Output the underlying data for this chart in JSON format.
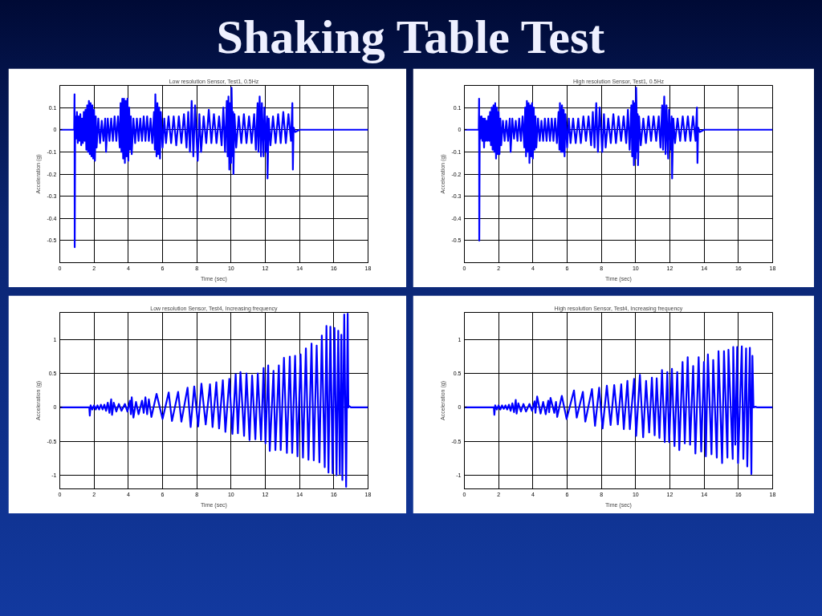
{
  "chart_data": [
    {
      "type": "other",
      "title": "Shaking Table Test"
    },
    {
      "type": "line",
      "title": "Low resolution Sensor, Test1, 0.5Hz",
      "xlabel": "Time (sec)",
      "ylabel": "Acceleration (g)",
      "xlim": [
        0,
        18
      ],
      "ylim": [
        -0.6,
        0.2
      ],
      "xticks": [
        0,
        2,
        4,
        6,
        8,
        10,
        12,
        14,
        16,
        18
      ],
      "yticks": [
        -0.5,
        -0.4,
        -0.3,
        -0.2,
        -0.1,
        0,
        0.1
      ],
      "grid": true,
      "series": [
        {
          "color": "#0000ff",
          "x": [
            0,
            0.84,
            0.86,
            0.87,
            0.9,
            0.95,
            1.0,
            1.05,
            1.1,
            1.15,
            1.2,
            1.25,
            1.3,
            1.35,
            1.4,
            1.45,
            1.5,
            1.55,
            1.6,
            1.65,
            1.7,
            1.75,
            1.8,
            1.85,
            1.9,
            1.95,
            2.0,
            2.05,
            2.1,
            2.15,
            2.25,
            2.35,
            2.45,
            2.55,
            2.65,
            2.7,
            2.8,
            2.9,
            3.0,
            3.1,
            3.2,
            3.3,
            3.4,
            3.5,
            3.55,
            3.6,
            3.65,
            3.7,
            3.75,
            3.8,
            3.85,
            3.9,
            3.95,
            4.0,
            4.05,
            4.1,
            4.15,
            4.2,
            4.3,
            4.4,
            4.5,
            4.6,
            4.7,
            4.8,
            4.9,
            5.0,
            5.1,
            5.2,
            5.3,
            5.4,
            5.5,
            5.55,
            5.58,
            5.65,
            5.7,
            5.75,
            5.8,
            5.85,
            5.9,
            6.0,
            6.1,
            6.2,
            6.35,
            6.5,
            6.65,
            6.8,
            6.95,
            7.1,
            7.25,
            7.4,
            7.5,
            7.6,
            7.7,
            7.8,
            7.9,
            8.05,
            8.15,
            8.25,
            8.4,
            8.55,
            8.7,
            8.85,
            9.0,
            9.15,
            9.3,
            9.45,
            9.55,
            9.65,
            9.75,
            9.8,
            9.85,
            9.9,
            9.95,
            10.0,
            10.03,
            10.1,
            10.12,
            10.14,
            10.2,
            10.3,
            10.45,
            10.6,
            10.75,
            10.9,
            11.05,
            11.2,
            11.35,
            11.45,
            11.55,
            11.6,
            11.67,
            11.75,
            11.8,
            11.9,
            11.95,
            12.05,
            12.1,
            12.13,
            12.2,
            12.3,
            12.45,
            12.6,
            12.75,
            12.9,
            13.05,
            13.2,
            13.35,
            13.5,
            13.58,
            13.61,
            13.65,
            13.75,
            14,
            18
          ],
          "values": [
            0,
            0,
            0.16,
            -0.53,
            0.06,
            -0.04,
            0.08,
            -0.06,
            0.06,
            -0.05,
            0.07,
            -0.07,
            0.05,
            -0.06,
            0.08,
            -0.05,
            0.09,
            -0.09,
            0.11,
            -0.1,
            0.13,
            -0.11,
            0.12,
            -0.12,
            0.11,
            -0.13,
            0.09,
            -0.14,
            0.06,
            -0.08,
            0.05,
            -0.06,
            0.04,
            -0.05,
            0.05,
            -0.1,
            0.05,
            -0.05,
            0.05,
            -0.05,
            0.06,
            -0.05,
            0.06,
            -0.08,
            0.12,
            -0.1,
            0.14,
            -0.13,
            0.14,
            -0.15,
            0.13,
            -0.12,
            0.14,
            -0.14,
            0.1,
            -0.09,
            0.06,
            -0.11,
            0.05,
            -0.06,
            0.05,
            -0.05,
            0.05,
            -0.05,
            0.06,
            -0.05,
            0.06,
            -0.05,
            0.05,
            -0.06,
            0.08,
            -0.09,
            0.16,
            -0.12,
            0.12,
            -0.11,
            0.1,
            -0.13,
            0.08,
            -0.08,
            0.05,
            -0.06,
            0.06,
            -0.06,
            0.06,
            -0.07,
            0.06,
            -0.06,
            0.07,
            -0.08,
            0.08,
            -0.1,
            0.13,
            -0.12,
            0.11,
            -0.14,
            0.07,
            -0.1,
            0.06,
            -0.06,
            0.09,
            -0.06,
            0.07,
            -0.06,
            0.06,
            -0.07,
            0.1,
            -0.1,
            0.13,
            -0.12,
            0.15,
            -0.18,
            0.12,
            -0.15,
            0.19,
            -0.12,
            0.08,
            -0.2,
            0.07,
            -0.08,
            0.06,
            -0.06,
            0.07,
            -0.06,
            0.06,
            -0.06,
            0.07,
            -0.09,
            0.12,
            -0.1,
            0.15,
            -0.12,
            0.12,
            -0.12,
            0.1,
            -0.1,
            0.06,
            -0.22,
            0.05,
            -0.07,
            0.06,
            -0.06,
            0.07,
            -0.06,
            0.08,
            -0.06,
            0.07,
            -0.05,
            0.12,
            -0.18,
            0.01,
            -0.01,
            0,
            0
          ]
        }
      ]
    },
    {
      "type": "line",
      "title": "High resolution Sensor, Test1, 0.5Hz",
      "xlabel": "Time (sec)",
      "ylabel": "Acceleration (g)",
      "xlim": [
        0,
        18
      ],
      "ylim": [
        -0.6,
        0.2
      ],
      "xticks": [
        0,
        2,
        4,
        6,
        8,
        10,
        12,
        14,
        16,
        18
      ],
      "yticks": [
        -0.5,
        -0.4,
        -0.3,
        -0.2,
        -0.1,
        0,
        0.1
      ],
      "grid": true,
      "series": [
        {
          "color": "#0000ff",
          "x": [
            0,
            0.84,
            0.86,
            0.87,
            0.9,
            0.95,
            1.0,
            1.05,
            1.1,
            1.15,
            1.2,
            1.25,
            1.3,
            1.35,
            1.4,
            1.45,
            1.5,
            1.55,
            1.6,
            1.65,
            1.7,
            1.75,
            1.8,
            1.85,
            1.9,
            1.95,
            2.0,
            2.05,
            2.1,
            2.15,
            2.25,
            2.35,
            2.45,
            2.55,
            2.65,
            2.7,
            2.8,
            2.9,
            3.0,
            3.1,
            3.2,
            3.3,
            3.4,
            3.5,
            3.55,
            3.6,
            3.65,
            3.7,
            3.75,
            3.8,
            3.85,
            3.9,
            3.95,
            4.0,
            4.05,
            4.1,
            4.15,
            4.2,
            4.3,
            4.4,
            4.5,
            4.6,
            4.7,
            4.8,
            4.9,
            5.0,
            5.1,
            5.2,
            5.3,
            5.4,
            5.5,
            5.55,
            5.58,
            5.65,
            5.7,
            5.75,
            5.8,
            5.85,
            5.9,
            6.0,
            6.1,
            6.2,
            6.35,
            6.5,
            6.65,
            6.8,
            6.95,
            7.1,
            7.25,
            7.4,
            7.5,
            7.6,
            7.7,
            7.8,
            7.9,
            8.05,
            8.15,
            8.25,
            8.4,
            8.55,
            8.7,
            8.85,
            9.0,
            9.15,
            9.3,
            9.45,
            9.55,
            9.65,
            9.75,
            9.8,
            9.85,
            9.9,
            9.95,
            10.0,
            10.03,
            10.1,
            10.12,
            10.14,
            10.2,
            10.3,
            10.45,
            10.6,
            10.75,
            10.9,
            11.05,
            11.2,
            11.35,
            11.45,
            11.55,
            11.6,
            11.67,
            11.75,
            11.8,
            11.9,
            11.95,
            12.05,
            12.1,
            12.13,
            12.2,
            12.3,
            12.45,
            12.6,
            12.75,
            12.9,
            13.05,
            13.2,
            13.35,
            13.5,
            13.58,
            13.61,
            13.65,
            13.75,
            14,
            18
          ],
          "values": [
            0,
            0,
            0.14,
            -0.5,
            0.06,
            -0.04,
            0.06,
            -0.05,
            0.05,
            -0.08,
            0.05,
            -0.05,
            0.04,
            -0.05,
            0.06,
            -0.05,
            0.08,
            -0.07,
            0.1,
            -0.09,
            0.11,
            -0.1,
            0.12,
            -0.13,
            0.1,
            -0.11,
            0.08,
            -0.11,
            0.05,
            -0.07,
            0.04,
            -0.05,
            0.04,
            -0.05,
            0.05,
            -0.1,
            0.05,
            -0.04,
            0.04,
            -0.05,
            0.05,
            -0.05,
            0.06,
            -0.08,
            0.1,
            -0.12,
            0.13,
            -0.1,
            0.12,
            -0.15,
            0.11,
            -0.12,
            0.12,
            -0.13,
            0.1,
            -0.09,
            0.06,
            -0.08,
            0.05,
            -0.05,
            0.04,
            -0.05,
            0.05,
            -0.05,
            0.05,
            -0.05,
            0.05,
            -0.05,
            0.05,
            -0.06,
            0.08,
            -0.09,
            0.12,
            -0.1,
            0.11,
            -0.1,
            0.09,
            -0.12,
            0.07,
            -0.08,
            0.05,
            -0.06,
            0.05,
            -0.06,
            0.05,
            -0.06,
            0.06,
            -0.05,
            0.06,
            -0.07,
            0.08,
            -0.08,
            0.12,
            -0.1,
            0.1,
            -0.1,
            0.07,
            -0.08,
            0.05,
            -0.06,
            0.07,
            -0.06,
            0.06,
            -0.05,
            0.06,
            -0.06,
            0.09,
            -0.09,
            0.11,
            -0.12,
            0.13,
            -0.16,
            0.12,
            -0.13,
            0.19,
            -0.1,
            0.07,
            -0.16,
            0.06,
            -0.07,
            0.05,
            -0.06,
            0.06,
            -0.05,
            0.06,
            -0.05,
            0.06,
            -0.08,
            0.11,
            -0.09,
            0.15,
            -0.11,
            0.11,
            -0.13,
            0.09,
            -0.09,
            0.06,
            -0.22,
            0.05,
            -0.06,
            0.05,
            -0.05,
            0.06,
            -0.05,
            0.06,
            -0.05,
            0.06,
            -0.05,
            0.1,
            -0.15,
            0.01,
            -0.01,
            0,
            0
          ]
        }
      ]
    },
    {
      "type": "line",
      "title": "Low resolution Sensor, Test4, Increasing frequency",
      "xlabel": "Time (sec)",
      "ylabel": "Acceleration (g)",
      "xlim": [
        0,
        18
      ],
      "ylim": [
        -1.2,
        1.4
      ],
      "xticks": [
        0,
        2,
        4,
        6,
        8,
        10,
        12,
        14,
        16,
        18
      ],
      "yticks": [
        -1,
        -0.5,
        0,
        0.5,
        1
      ],
      "grid": true,
      "series": [
        {
          "color": "#0000ff",
          "x": [
            0,
            1.72,
            1.75,
            1.8,
            1.9,
            2.0,
            2.1,
            2.2,
            2.3,
            2.4,
            2.5,
            2.6,
            2.7,
            2.8,
            2.9,
            3.0,
            3.05,
            3.15,
            3.3,
            3.45,
            3.6,
            3.8,
            3.95,
            4.1,
            4.15,
            4.2,
            4.3,
            4.45,
            4.6,
            4.8,
            4.9,
            5.0,
            5.1,
            5.2,
            5.35,
            5.65,
            6.0,
            6.36,
            6.55,
            6.91,
            7.1,
            7.46,
            7.64,
            7.85,
            8.08,
            8.27,
            8.52,
            8.77,
            8.92,
            9.14,
            9.3,
            9.52,
            9.67,
            9.9,
            10.08,
            10.27,
            10.4,
            10.55,
            10.76,
            10.9,
            11.08,
            11.23,
            11.42,
            11.56,
            11.75,
            11.9,
            12.01,
            12.17,
            12.26,
            12.48,
            12.59,
            12.79,
            12.9,
            13.09,
            13.26,
            13.43,
            13.57,
            13.74,
            13.88,
            14.06,
            14.2,
            14.37,
            14.52,
            14.7,
            14.83,
            15.0,
            15.16,
            15.3,
            15.47,
            15.57,
            15.69,
            15.8,
            15.93,
            16.04,
            16.16,
            16.26,
            16.35,
            16.44,
            16.5,
            16.61,
            16.72,
            16.81,
            16.85,
            16.9,
            17.0,
            18
          ],
          "values": [
            0,
            0,
            -0.12,
            0.03,
            -0.03,
            0.03,
            -0.03,
            0.03,
            -0.03,
            0.04,
            -0.03,
            0.04,
            -0.05,
            0.07,
            -0.08,
            0.12,
            -0.11,
            0.07,
            -0.06,
            0.05,
            -0.05,
            0.05,
            -0.06,
            0.1,
            -0.1,
            0.15,
            -0.15,
            0.08,
            -0.1,
            0.1,
            -0.08,
            0.15,
            -0.1,
            0.12,
            -0.14,
            0.2,
            -0.17,
            0.22,
            -0.2,
            0.23,
            -0.21,
            0.29,
            -0.29,
            0.31,
            -0.28,
            0.35,
            -0.25,
            0.34,
            -0.29,
            0.37,
            -0.31,
            0.4,
            -0.36,
            0.42,
            -0.39,
            0.49,
            -0.38,
            0.52,
            -0.42,
            0.5,
            -0.48,
            0.47,
            -0.47,
            0.5,
            -0.48,
            0.58,
            -0.53,
            0.62,
            -0.64,
            0.54,
            -0.63,
            0.62,
            -0.63,
            0.73,
            -0.67,
            0.75,
            -0.67,
            0.76,
            -0.72,
            0.78,
            -0.74,
            0.87,
            -0.77,
            0.94,
            -0.78,
            0.91,
            -0.81,
            1.06,
            -0.88,
            1.2,
            -0.96,
            1.19,
            -0.97,
            1.17,
            -1.0,
            1.13,
            -0.98,
            1.07,
            -1.07,
            1.37,
            -1.17,
            1.38,
            0,
            0.02,
            0,
            0
          ]
        }
      ]
    },
    {
      "type": "line",
      "title": "High resolution Sensor, Test4, Increasing frequency",
      "xlabel": "Time (sec)",
      "ylabel": "Acceleration (g)",
      "xlim": [
        0,
        18
      ],
      "ylim": [
        -1.2,
        1.4
      ],
      "xticks": [
        0,
        2,
        4,
        6,
        8,
        10,
        12,
        14,
        16,
        18
      ],
      "yticks": [
        -1,
        -0.5,
        0,
        0.5,
        1
      ],
      "grid": true,
      "series": [
        {
          "color": "#0000ff",
          "x": [
            0,
            1.72,
            1.75,
            1.8,
            1.9,
            2.0,
            2.1,
            2.2,
            2.3,
            2.4,
            2.5,
            2.6,
            2.7,
            2.8,
            2.9,
            3.0,
            3.05,
            3.15,
            3.3,
            3.45,
            3.6,
            3.8,
            3.95,
            4.1,
            4.15,
            4.25,
            4.45,
            4.6,
            4.75,
            4.9,
            4.95,
            5.03,
            5.25,
            5.35,
            5.42,
            5.69,
            5.97,
            6.4,
            6.56,
            6.92,
            7.06,
            7.45,
            7.63,
            7.87,
            8.07,
            8.32,
            8.54,
            8.75,
            8.96,
            9.16,
            9.31,
            9.52,
            9.66,
            9.91,
            10.03,
            10.25,
            10.44,
            10.61,
            10.79,
            10.95,
            11.11,
            11.23,
            11.39,
            11.54,
            11.7,
            11.85,
            11.96,
            12.12,
            12.27,
            12.43,
            12.55,
            12.74,
            12.87,
            13.04,
            13.18,
            13.36,
            13.49,
            13.68,
            13.83,
            13.99,
            14.1,
            14.22,
            14.43,
            14.53,
            14.74,
            14.84,
            15.05,
            15.16,
            15.36,
            15.42,
            15.67,
            15.7,
            15.82,
            15.93,
            15.98,
            16.2,
            16.29,
            16.45,
            16.52,
            16.67,
            16.76,
            16.82,
            16.88,
            17.0,
            17.1,
            18
          ],
          "values": [
            0,
            0,
            -0.11,
            0.03,
            -0.03,
            0.03,
            -0.03,
            0.03,
            -0.02,
            0.03,
            -0.03,
            0.04,
            -0.05,
            0.06,
            -0.07,
            0.11,
            -0.09,
            0.06,
            -0.06,
            0.05,
            -0.06,
            0.05,
            -0.05,
            0.09,
            -0.08,
            0.16,
            -0.09,
            0.08,
            -0.1,
            0.1,
            -0.07,
            0.14,
            -0.08,
            0.08,
            -0.14,
            0.17,
            -0.17,
            0.25,
            -0.15,
            0.23,
            -0.21,
            0.27,
            -0.27,
            0.29,
            -0.31,
            0.32,
            -0.26,
            0.33,
            -0.25,
            0.34,
            -0.32,
            0.39,
            -0.32,
            0.42,
            -0.42,
            0.48,
            -0.44,
            0.39,
            -0.37,
            0.44,
            -0.41,
            0.43,
            -0.45,
            0.55,
            -0.51,
            0.52,
            -0.51,
            0.57,
            -0.57,
            0.52,
            -0.63,
            0.67,
            -0.53,
            0.74,
            -0.55,
            0.61,
            -0.68,
            0.74,
            -0.65,
            0.67,
            -0.72,
            0.78,
            -0.69,
            0.7,
            -0.74,
            0.83,
            -0.82,
            0.83,
            -0.74,
            0.85,
            -0.76,
            0.89,
            -0.55,
            0.89,
            -0.82,
            0.9,
            -0.76,
            0.87,
            -0.87,
            0.88,
            -0.98,
            0.76,
            0,
            0.01,
            0,
            0
          ]
        }
      ]
    }
  ]
}
